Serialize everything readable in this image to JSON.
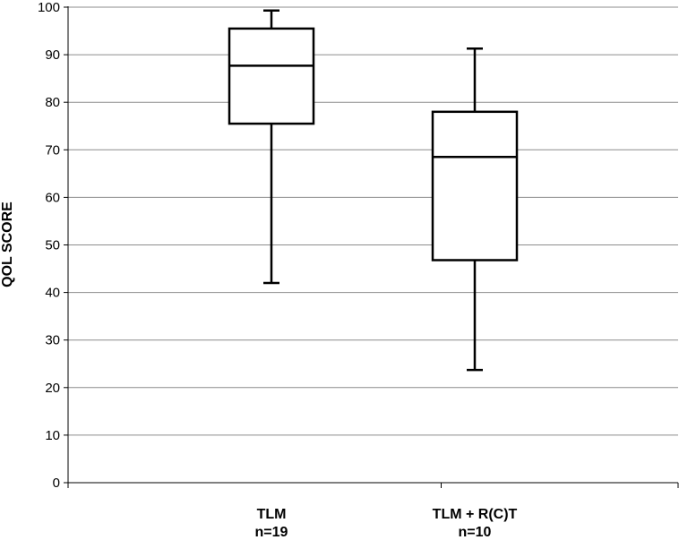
{
  "chart_data": {
    "type": "boxplot",
    "title": "",
    "xlabel": "",
    "ylabel": "QOL SCORE",
    "ylim": [
      0,
      100
    ],
    "yticks": [
      0,
      10,
      20,
      30,
      40,
      50,
      60,
      70,
      80,
      90,
      100
    ],
    "grid": true,
    "categories": [
      {
        "line1": "TLM",
        "line2": "n=19"
      },
      {
        "line1": "TLM + R(C)T",
        "line2": "n=10"
      }
    ],
    "boxes": [
      {
        "min": 42,
        "q1": 75.5,
        "median": 87.7,
        "q3": 95.5,
        "max": 99.3
      },
      {
        "min": 23.7,
        "q1": 46.8,
        "median": 68.5,
        "q3": 78,
        "max": 91.3
      }
    ]
  }
}
